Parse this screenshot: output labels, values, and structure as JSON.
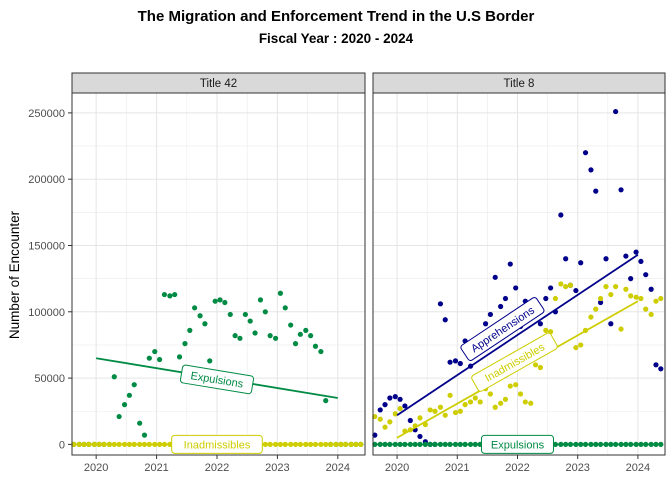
{
  "chart_data": {
    "type": "scatter",
    "title": "The Migration and Enforcement Trend in the U.S Border",
    "subtitle": "Fiscal Year : 2020 - 2024",
    "ylabel": "Number of Encounter",
    "xlabel": "",
    "xlim": [
      2019.6,
      2024.45
    ],
    "ylim": [
      -8000,
      265000
    ],
    "x_ticks": [
      2020,
      2021,
      2022,
      2023,
      2024
    ],
    "y_ticks": [
      0,
      50000,
      100000,
      150000,
      200000,
      250000
    ],
    "y_tick_labels": [
      "0",
      "50000",
      "100000",
      "150000",
      "200000",
      "250000"
    ],
    "colors": {
      "Apprehensions": "#00008b",
      "Inadmissibles": "#cdcd00",
      "Expulsions": "#008b45"
    },
    "panels": [
      {
        "name": "Title 42",
        "series": [
          {
            "name": "Expulsions",
            "x": [
              2019.63,
              2019.72,
              2019.8,
              2019.88,
              2019.97,
              2020.05,
              2020.13,
              2020.22,
              2020.3,
              2020.38,
              2020.47,
              2020.55,
              2020.63,
              2020.72,
              2020.8,
              2020.88,
              2020.97,
              2021.05,
              2021.13,
              2021.22,
              2021.3,
              2021.38,
              2021.47,
              2021.55,
              2021.63,
              2021.72,
              2021.8,
              2021.88,
              2021.97,
              2022.05,
              2022.13,
              2022.22,
              2022.3,
              2022.38,
              2022.47,
              2022.55,
              2022.63,
              2022.72,
              2022.8,
              2022.88,
              2022.97,
              2023.05,
              2023.13,
              2023.22,
              2023.3,
              2023.38,
              2023.47,
              2023.55,
              2023.63,
              2023.72,
              2023.8,
              2023.88,
              2023.97,
              2024.05,
              2024.13,
              2024.22,
              2024.3,
              2024.38
            ],
            "y": [
              0,
              0,
              0,
              0,
              0,
              0,
              0,
              0,
              51000,
              21000,
              30000,
              37000,
              45000,
              16000,
              7000,
              65000,
              70000,
              64000,
              113000,
              112000,
              113000,
              66000,
              76000,
              86000,
              103000,
              97000,
              91000,
              63000,
              108000,
              109000,
              107000,
              98000,
              82000,
              80000,
              98000,
              93000,
              84000,
              109000,
              100000,
              82000,
              80000,
              114000,
              103000,
              90000,
              76000,
              83000,
              86000,
              82000,
              74000,
              70000,
              33000,
              0,
              0,
              0,
              0,
              0,
              0,
              0
            ],
            "trend": {
              "x": [
                2020.0,
                2024.0
              ],
              "y": [
                65000,
                35000
              ]
            },
            "label": "Expulsions",
            "label_x": 2022.0,
            "label_y": 49000
          },
          {
            "name": "Inadmissibles",
            "x": [
              2019.63,
              2019.72,
              2019.8,
              2019.88,
              2019.97,
              2020.05,
              2020.13,
              2020.22,
              2020.3,
              2020.38,
              2020.47,
              2020.55,
              2020.63,
              2020.72,
              2020.8,
              2020.88,
              2020.97,
              2021.05,
              2021.13,
              2021.22,
              2021.3,
              2021.38,
              2021.47,
              2021.55,
              2021.63,
              2021.72,
              2021.8,
              2021.88,
              2021.97,
              2022.05,
              2022.13,
              2022.22,
              2022.3,
              2022.38,
              2022.47,
              2022.55,
              2022.63,
              2022.72,
              2022.8,
              2022.88,
              2022.97,
              2023.05,
              2023.13,
              2023.22,
              2023.3,
              2023.38,
              2023.47,
              2023.55,
              2023.63,
              2023.72,
              2023.8,
              2023.88,
              2023.97,
              2024.05,
              2024.13,
              2024.22,
              2024.3,
              2024.38
            ],
            "y": [
              0,
              0,
              0,
              0,
              0,
              0,
              0,
              0,
              0,
              0,
              0,
              0,
              0,
              0,
              0,
              0,
              0,
              0,
              0,
              0,
              0,
              0,
              0,
              0,
              0,
              0,
              0,
              0,
              0,
              0,
              0,
              0,
              0,
              0,
              0,
              0,
              0,
              0,
              0,
              0,
              0,
              0,
              0,
              0,
              0,
              0,
              0,
              0,
              0,
              0,
              0,
              0,
              0,
              0,
              0,
              0,
              0,
              0
            ],
            "trend": {
              "x": [
                2019.63,
                2024.38
              ],
              "y": [
                0,
                0
              ]
            },
            "label": "Inadmissibles",
            "label_x": 2022.0,
            "label_y": 0
          }
        ]
      },
      {
        "name": "Title 8",
        "series": [
          {
            "name": "Apprehensions",
            "x": [
              2019.63,
              2019.72,
              2019.8,
              2019.88,
              2019.97,
              2020.05,
              2020.13,
              2020.22,
              2020.3,
              2020.38,
              2020.47,
              2020.55,
              2020.63,
              2020.72,
              2020.8,
              2020.88,
              2020.97,
              2021.05,
              2021.13,
              2021.22,
              2021.3,
              2021.38,
              2021.47,
              2021.55,
              2021.63,
              2021.72,
              2021.8,
              2021.88,
              2021.97,
              2022.05,
              2022.13,
              2022.22,
              2022.3,
              2022.38,
              2022.47,
              2022.55,
              2022.63,
              2022.72,
              2022.8,
              2022.88,
              2022.97,
              2023.05,
              2023.13,
              2023.22,
              2023.3,
              2023.38,
              2023.47,
              2023.55,
              2023.63,
              2023.72,
              2023.8,
              2023.88,
              2023.97,
              2024.05,
              2024.13,
              2024.22,
              2024.3,
              2024.38
            ],
            "y": [
              7000,
              26000,
              30000,
              35000,
              36000,
              34000,
              29000,
              18000,
              11000,
              6000,
              2000,
              0,
              0,
              106000,
              94000,
              62000,
              63000,
              61000,
              78000,
              59000,
              68000,
              73000,
              91000,
              98000,
              126000,
              104000,
              110000,
              136000,
              118000,
              89000,
              108000,
              97000,
              100000,
              91000,
              110000,
              118000,
              100000,
              173000,
              140000,
              120000,
              116000,
              137000,
              220000,
              207000,
              191000,
              107000,
              140000,
              91000,
              251000,
              192000,
              142000,
              125000,
              145000,
              138000,
              128000,
              117000,
              60000,
              57000
            ],
            "trend": {
              "x": [
                2020.0,
                2024.0
              ],
              "y": [
                22000,
                143000
              ]
            },
            "label": "Apprehensions",
            "label_x": 2021.75,
            "label_y": 87000
          },
          {
            "name": "Inadmissibles",
            "x": [
              2019.63,
              2019.72,
              2019.8,
              2019.88,
              2019.97,
              2020.05,
              2020.13,
              2020.22,
              2020.3,
              2020.38,
              2020.47,
              2020.55,
              2020.63,
              2020.72,
              2020.8,
              2020.88,
              2020.97,
              2021.05,
              2021.13,
              2021.22,
              2021.3,
              2021.38,
              2021.47,
              2021.55,
              2021.63,
              2021.72,
              2021.8,
              2021.88,
              2021.97,
              2022.05,
              2022.13,
              2022.22,
              2022.3,
              2022.38,
              2022.47,
              2022.55,
              2022.63,
              2022.72,
              2022.8,
              2022.88,
              2022.97,
              2023.05,
              2023.13,
              2023.22,
              2023.3,
              2023.38,
              2023.47,
              2023.55,
              2023.63,
              2023.72,
              2023.8,
              2023.88,
              2023.97,
              2024.05,
              2024.13,
              2024.22,
              2024.3,
              2024.38
            ],
            "y": [
              21000,
              19000,
              13000,
              17000,
              23000,
              27000,
              10000,
              11000,
              14000,
              20000,
              15000,
              26000,
              25000,
              28000,
              22000,
              37000,
              24000,
              25000,
              30000,
              32000,
              35000,
              32000,
              42000,
              38000,
              28000,
              31000,
              34000,
              44000,
              45000,
              38000,
              32000,
              31000,
              60000,
              58000,
              86000,
              85000,
              110000,
              121000,
              119000,
              120000,
              73000,
              75000,
              86000,
              96000,
              102000,
              110000,
              119000,
              113000,
              119000,
              87000,
              117000,
              112000,
              111000,
              110000,
              102000,
              98000,
              108000,
              110000
            ],
            "trend": {
              "x": [
                2020.0,
                2024.0
              ],
              "y": [
                5000,
                108000
              ]
            },
            "label": "Inadmissibles",
            "label_x": 2021.95,
            "label_y": 62000
          },
          {
            "name": "Expulsions",
            "x": [
              2019.63,
              2019.72,
              2019.8,
              2019.88,
              2019.97,
              2020.05,
              2020.13,
              2020.22,
              2020.3,
              2020.38,
              2020.47,
              2020.55,
              2020.63,
              2020.72,
              2020.8,
              2020.88,
              2020.97,
              2021.05,
              2021.13,
              2021.22,
              2021.3,
              2021.38,
              2021.47,
              2021.55,
              2021.63,
              2021.72,
              2021.8,
              2021.88,
              2021.97,
              2022.05,
              2022.13,
              2022.22,
              2022.3,
              2022.38,
              2022.47,
              2022.55,
              2022.63,
              2022.72,
              2022.8,
              2022.88,
              2022.97,
              2023.05,
              2023.13,
              2023.22,
              2023.3,
              2023.38,
              2023.47,
              2023.55,
              2023.63,
              2023.72,
              2023.8,
              2023.88,
              2023.97,
              2024.05,
              2024.13,
              2024.22,
              2024.3,
              2024.38
            ],
            "y": [
              0,
              0,
              0,
              0,
              0,
              0,
              0,
              0,
              0,
              0,
              0,
              0,
              0,
              0,
              0,
              0,
              0,
              0,
              0,
              0,
              0,
              0,
              0,
              0,
              0,
              0,
              0,
              0,
              0,
              0,
              0,
              0,
              0,
              0,
              0,
              0,
              0,
              0,
              0,
              0,
              0,
              0,
              0,
              0,
              0,
              0,
              0,
              0,
              0,
              0,
              0,
              0,
              0,
              0,
              0,
              0,
              0,
              0
            ],
            "trend": {
              "x": [
                2019.63,
                2024.38
              ],
              "y": [
                0,
                0
              ]
            },
            "label": "Expulsions",
            "label_x": 2022.0,
            "label_y": 0
          }
        ]
      }
    ]
  }
}
